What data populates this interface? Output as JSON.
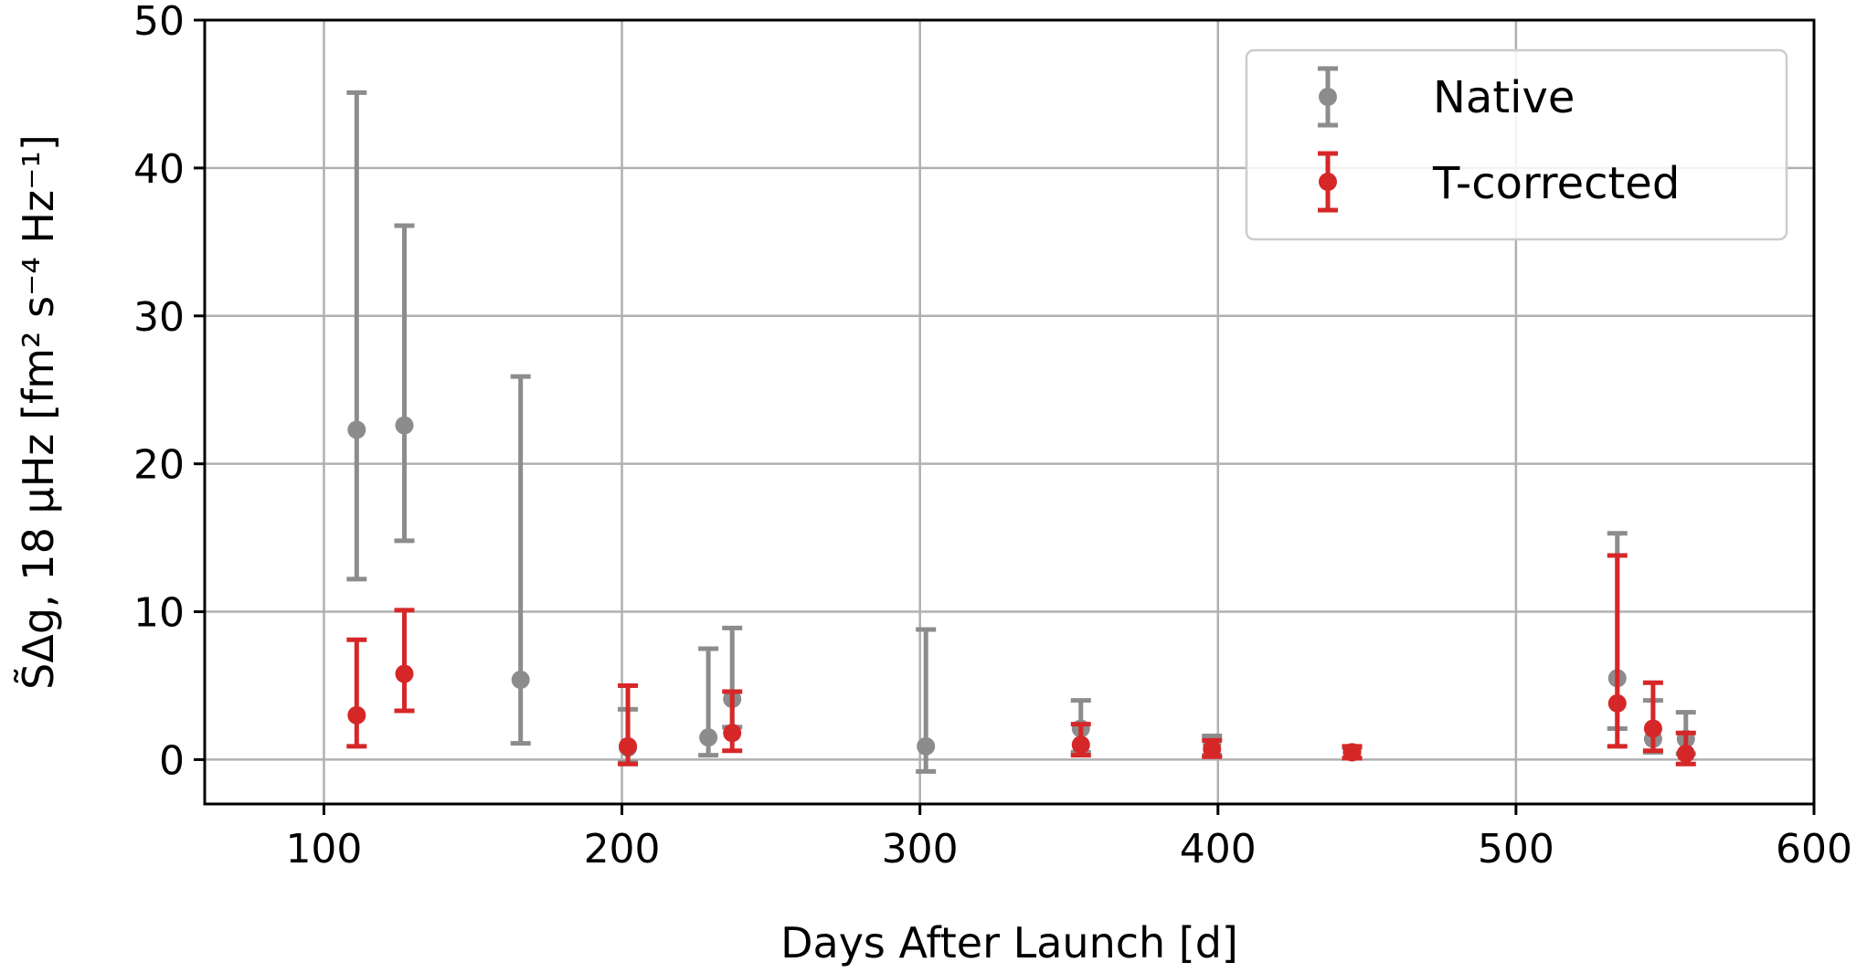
{
  "chart_data": {
    "type": "scatter",
    "title": "",
    "xlabel": "Days After Launch [d]",
    "ylabel": "S̃Δg, 18 μHz [fm² s⁻⁴ Hz⁻¹]",
    "xlim": [
      60,
      600
    ],
    "ylim": [
      -3,
      50
    ],
    "xticks": [
      100,
      200,
      300,
      400,
      500,
      600
    ],
    "yticks": [
      0,
      10,
      20,
      30,
      40,
      50
    ],
    "grid": true,
    "legend_position": "top-right",
    "series": [
      {
        "name": "Native",
        "color": "#8c8c8c",
        "points": [
          {
            "x": 111,
            "y": 22.3,
            "lo": 12.2,
            "hi": 45.1
          },
          {
            "x": 127,
            "y": 22.6,
            "lo": 14.8,
            "hi": 36.1
          },
          {
            "x": 166,
            "y": 5.4,
            "lo": 1.1,
            "hi": 25.9
          },
          {
            "x": 202,
            "y": 0.8,
            "lo": -0.2,
            "hi": 3.4
          },
          {
            "x": 229,
            "y": 1.5,
            "lo": 0.3,
            "hi": 7.5
          },
          {
            "x": 237,
            "y": 4.1,
            "lo": 2.2,
            "hi": 8.9
          },
          {
            "x": 302,
            "y": 0.9,
            "lo": -0.8,
            "hi": 8.8
          },
          {
            "x": 354,
            "y": 2.1,
            "lo": 0.5,
            "hi": 4.0
          },
          {
            "x": 398,
            "y": 1.0,
            "lo": 0.3,
            "hi": 1.6
          },
          {
            "x": 445,
            "y": 0.5,
            "lo": 0.1,
            "hi": 0.8
          },
          {
            "x": 534,
            "y": 5.5,
            "lo": 2.1,
            "hi": 15.3
          },
          {
            "x": 546,
            "y": 1.4,
            "lo": 0.5,
            "hi": 4.0
          },
          {
            "x": 557,
            "y": 1.4,
            "lo": 0.4,
            "hi": 3.2
          }
        ]
      },
      {
        "name": "T-corrected",
        "color": "#d62728",
        "points": [
          {
            "x": 111,
            "y": 3.0,
            "lo": 0.9,
            "hi": 8.1
          },
          {
            "x": 127,
            "y": 5.8,
            "lo": 3.3,
            "hi": 10.1
          },
          {
            "x": 202,
            "y": 0.9,
            "lo": -0.3,
            "hi": 5.0
          },
          {
            "x": 237,
            "y": 1.8,
            "lo": 0.6,
            "hi": 4.6
          },
          {
            "x": 354,
            "y": 1.0,
            "lo": 0.3,
            "hi": 2.4
          },
          {
            "x": 398,
            "y": 0.7,
            "lo": 0.2,
            "hi": 1.3
          },
          {
            "x": 445,
            "y": 0.5,
            "lo": 0.1,
            "hi": 0.9
          },
          {
            "x": 534,
            "y": 3.8,
            "lo": 0.9,
            "hi": 13.8
          },
          {
            "x": 546,
            "y": 2.1,
            "lo": 0.6,
            "hi": 5.2
          },
          {
            "x": 557,
            "y": 0.4,
            "lo": -0.3,
            "hi": 1.8
          }
        ]
      }
    ]
  }
}
